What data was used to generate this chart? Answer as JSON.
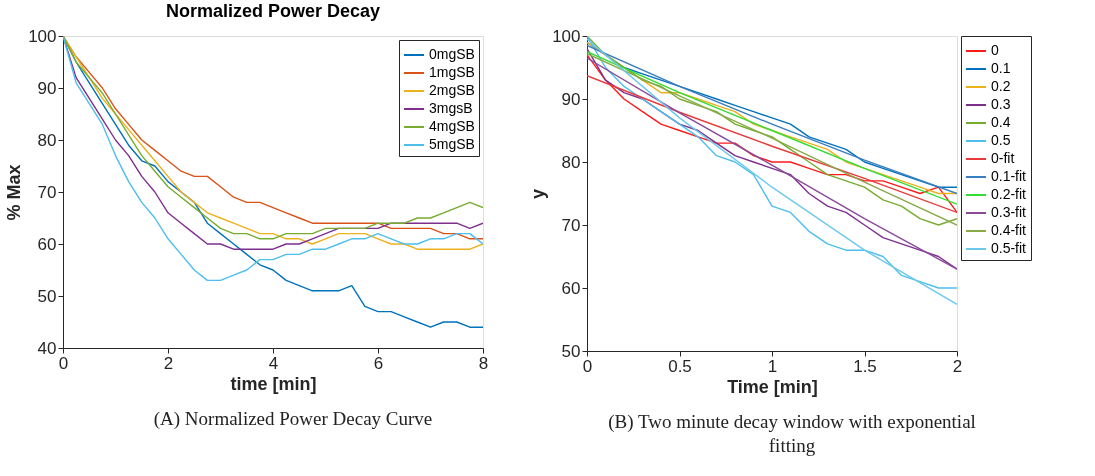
{
  "chart_data": [
    {
      "type": "line",
      "title": "Normalized Power Decay",
      "xlabel": "time [min]",
      "ylabel": "% Max",
      "xlim": [
        0,
        8
      ],
      "ylim": [
        40,
        100
      ],
      "xticks": [
        0,
        2,
        4,
        6,
        8
      ],
      "yticks": [
        40,
        50,
        60,
        70,
        80,
        90,
        100
      ],
      "legend": "top right",
      "grid": false,
      "annotations": [
        "(A) Normalized Power Decay Curve"
      ],
      "x": [
        0,
        0.25,
        0.5,
        0.75,
        1,
        1.25,
        1.5,
        1.75,
        2,
        2.25,
        2.5,
        2.75,
        3,
        3.25,
        3.5,
        3.75,
        4,
        4.25,
        4.5,
        4.75,
        5,
        5.25,
        5.5,
        5.75,
        6,
        6.25,
        6.5,
        6.75,
        7,
        7.25,
        7.5,
        7.75,
        8
      ],
      "series": [
        {
          "name": "0mgSB",
          "color": "#0072bd",
          "values": [
            100,
            95,
            91,
            87,
            83,
            79,
            76,
            75,
            72,
            70,
            68,
            64,
            62,
            60,
            58,
            56,
            55,
            53,
            52,
            51,
            51,
            51,
            52,
            48,
            47,
            47,
            46,
            45,
            44,
            45,
            45,
            44,
            44
          ]
        },
        {
          "name": "1mgSB",
          "color": "#d95319",
          "values": [
            100,
            96,
            93,
            90,
            86,
            83,
            80,
            78,
            76,
            74,
            73,
            73,
            71,
            69,
            68,
            68,
            67,
            66,
            65,
            64,
            64,
            64,
            64,
            64,
            64,
            63,
            63,
            63,
            63,
            62,
            62,
            61,
            61
          ]
        },
        {
          "name": "2mgSB",
          "color": "#edb120",
          "values": [
            100,
            96,
            92,
            88,
            85,
            82,
            79,
            76,
            73,
            70,
            68,
            66,
            65,
            64,
            63,
            62,
            62,
            61,
            61,
            60,
            61,
            62,
            62,
            62,
            61,
            60,
            60,
            59,
            59,
            59,
            59,
            59,
            60
          ]
        },
        {
          "name": "3mgsB",
          "color": "#7e2f8e",
          "values": [
            100,
            92,
            88,
            84,
            80,
            77,
            73,
            70,
            66,
            64,
            62,
            60,
            60,
            59,
            59,
            59,
            59,
            60,
            60,
            61,
            62,
            63,
            63,
            63,
            63,
            64,
            64,
            64,
            64,
            64,
            64,
            63,
            64
          ]
        },
        {
          "name": "4mgSB",
          "color": "#77ac30",
          "values": [
            100,
            95,
            92,
            89,
            85,
            81,
            77,
            74,
            71,
            69,
            67,
            65,
            63,
            62,
            62,
            61,
            61,
            62,
            62,
            62,
            63,
            63,
            63,
            63,
            64,
            64,
            64,
            65,
            65,
            66,
            67,
            68,
            67
          ]
        },
        {
          "name": "5mgSB",
          "color": "#4dbeee",
          "values": [
            100,
            91,
            87,
            83,
            77,
            72,
            68,
            65,
            61,
            58,
            55,
            53,
            53,
            54,
            55,
            57,
            57,
            58,
            58,
            59,
            59,
            60,
            61,
            61,
            62,
            61,
            60,
            60,
            61,
            61,
            62,
            62,
            60
          ]
        }
      ]
    },
    {
      "type": "line",
      "xlabel": "Time [min]",
      "ylabel": "y",
      "xlim": [
        0,
        2
      ],
      "ylim": [
        50,
        100
      ],
      "xticks": [
        0,
        0.5,
        1,
        1.5,
        2
      ],
      "yticks": [
        50,
        60,
        70,
        80,
        90,
        100
      ],
      "legend": "right",
      "grid": false,
      "annotations": [
        "(B) Two minute decay window with exponential fitting"
      ],
      "x": [
        0,
        0.1,
        0.2,
        0.3,
        0.4,
        0.5,
        0.6,
        0.7,
        0.8,
        0.9,
        1,
        1.1,
        1.2,
        1.3,
        1.4,
        1.5,
        1.6,
        1.7,
        1.8,
        1.9,
        2
      ],
      "series": [
        {
          "name": "0",
          "color": "#ff1a1a",
          "values": [
            97,
            93,
            90,
            88,
            86,
            85,
            84,
            83,
            83,
            81,
            80,
            80,
            79,
            78,
            78,
            77,
            77,
            76,
            75,
            76,
            72
          ]
        },
        {
          "name": "0.1",
          "color": "#0072bd",
          "values": [
            99,
            97,
            95,
            94,
            93,
            92,
            91,
            90,
            89,
            88,
            87,
            86,
            84,
            83,
            82,
            80,
            79,
            78,
            77,
            76,
            76
          ]
        },
        {
          "name": "0.2",
          "color": "#edb120",
          "values": [
            99,
            97,
            95,
            93,
            91,
            91,
            90,
            89,
            88,
            86,
            85,
            84,
            83,
            82,
            80,
            79,
            78,
            77,
            76,
            75,
            75
          ]
        },
        {
          "name": "0.3",
          "color": "#7e2f8e",
          "values": [
            98,
            93,
            91,
            90,
            88,
            86,
            85,
            83,
            81,
            80,
            79,
            78,
            75,
            73,
            72,
            70,
            68,
            67,
            66,
            65,
            63
          ]
        },
        {
          "name": "0.4",
          "color": "#77ac30",
          "values": [
            100,
            97,
            95,
            93,
            92,
            90,
            89,
            88,
            86,
            85,
            84,
            82,
            80,
            78,
            77,
            76,
            74,
            73,
            71,
            70,
            71
          ]
        },
        {
          "name": "0.5",
          "color": "#4dbeee",
          "values": [
            100,
            95,
            92,
            90,
            88,
            86,
            84,
            81,
            80,
            78,
            73,
            72,
            69,
            67,
            66,
            66,
            65,
            62,
            61,
            60,
            60
          ]
        },
        {
          "name": "0-fit",
          "color": "#e83a3a",
          "x": [
            0,
            0.5,
            1,
            1.5,
            2
          ],
          "values": [
            93.7,
            87.9,
            82.5,
            77.4,
            72.0
          ]
        },
        {
          "name": "0.1-fit",
          "color": "#3a7ebf",
          "x": [
            0,
            0.5,
            1,
            1.5,
            2
          ],
          "values": [
            98.5,
            92.0,
            86.0,
            80.3,
            75.0
          ]
        },
        {
          "name": "0.2-fit",
          "color": "#33dd33",
          "x": [
            0,
            0.5,
            1,
            1.5,
            2
          ],
          "values": [
            97.5,
            91.0,
            85.0,
            79.0,
            73.3
          ]
        },
        {
          "name": "0.3-fit",
          "color": "#8a4a9a",
          "x": [
            0,
            0.5,
            1,
            1.5,
            2
          ],
          "values": [
            96.5,
            87.8,
            79.5,
            71.0,
            63.0
          ]
        },
        {
          "name": "0.4-fit",
          "color": "#8aaa4a",
          "x": [
            0,
            0.5,
            1,
            1.5,
            2
          ],
          "values": [
            97.2,
            90.5,
            83.8,
            76.8,
            70.0
          ]
        },
        {
          "name": "0.5-fit",
          "color": "#6cc8ee",
          "x": [
            0,
            0.5,
            1,
            1.5,
            2
          ],
          "values": [
            99.5,
            87.0,
            76.0,
            66.0,
            57.4
          ]
        }
      ]
    }
  ]
}
